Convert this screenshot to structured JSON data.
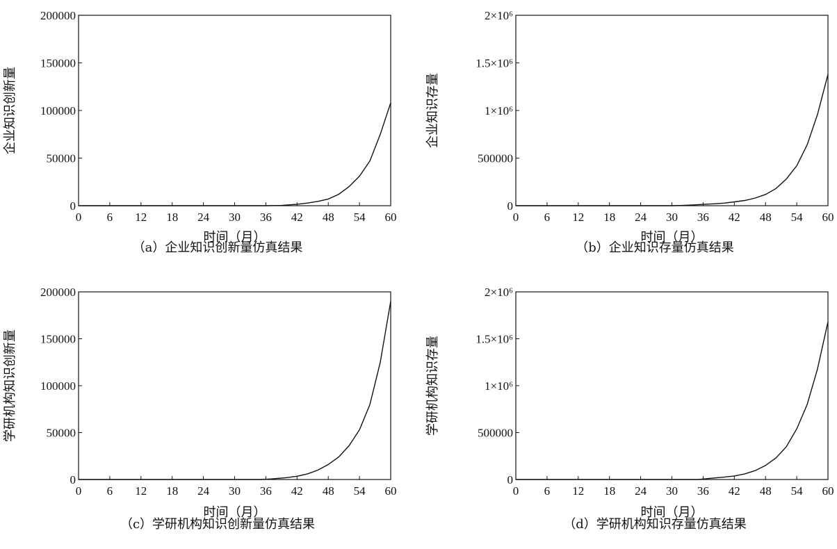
{
  "chart_data": [
    {
      "id": "a",
      "type": "line",
      "caption": "（a）企业知识创新量仿真结果",
      "xlabel": "时间（月）",
      "ylabel": "企业知识创新量",
      "xlim": [
        0,
        60
      ],
      "ylim": [
        0,
        200000
      ],
      "xticks": [
        0,
        6,
        12,
        18,
        24,
        30,
        36,
        42,
        48,
        54,
        60
      ],
      "xtick_labels": [
        "0",
        "6",
        "12",
        "18",
        "24",
        "30",
        "36",
        "42",
        "48",
        "54",
        "60"
      ],
      "yticks": [
        0,
        50000,
        100000,
        150000,
        200000
      ],
      "ytick_labels": [
        "0",
        "50000",
        "100000",
        "150000",
        "200000"
      ],
      "series": [
        {
          "x": [
            0,
            6,
            12,
            18,
            24,
            30,
            36,
            39,
            42,
            44,
            46,
            48,
            50,
            52,
            54,
            56,
            58,
            60
          ],
          "y": [
            0,
            0,
            0,
            0,
            0,
            0,
            0,
            300,
            1500,
            2800,
            4500,
            7000,
            12000,
            20000,
            31000,
            47000,
            75000,
            108000
          ]
        }
      ]
    },
    {
      "id": "b",
      "type": "line",
      "caption": "（b）企业知识存量仿真结果",
      "xlabel": "时间（月）",
      "ylabel": "企业知识存量",
      "xlim": [
        0,
        60
      ],
      "ylim": [
        0,
        2000000
      ],
      "xticks": [
        0,
        6,
        12,
        18,
        24,
        30,
        36,
        42,
        48,
        54,
        60
      ],
      "xtick_labels": [
        "0",
        "6",
        "12",
        "18",
        "24",
        "30",
        "36",
        "42",
        "48",
        "54",
        "60"
      ],
      "yticks": [
        0,
        500000,
        1000000,
        1500000,
        2000000
      ],
      "ytick_labels": [
        "0",
        "500000",
        "1×10⁶",
        "1.5×10⁶",
        "2×10⁶"
      ],
      "series": [
        {
          "x": [
            0,
            6,
            12,
            18,
            24,
            30,
            32,
            34,
            36,
            38,
            40,
            42,
            44,
            46,
            48,
            50,
            52,
            54,
            56,
            58,
            60
          ],
          "y": [
            0,
            0,
            0,
            0,
            0,
            0,
            3000,
            8000,
            14000,
            20000,
            27000,
            40000,
            55000,
            80000,
            118000,
            180000,
            280000,
            420000,
            640000,
            960000,
            1380000
          ]
        }
      ]
    },
    {
      "id": "c",
      "type": "line",
      "caption": "（c）学研机构知识创新量仿真结果",
      "xlabel": "时间（月）",
      "ylabel": "学研机构知识创新量",
      "xlim": [
        0,
        60
      ],
      "ylim": [
        0,
        200000
      ],
      "xticks": [
        0,
        6,
        12,
        18,
        24,
        30,
        36,
        42,
        48,
        54,
        60
      ],
      "xtick_labels": [
        "0",
        "6",
        "12",
        "18",
        "24",
        "30",
        "36",
        "42",
        "48",
        "54",
        "60"
      ],
      "yticks": [
        0,
        50000,
        100000,
        150000,
        200000
      ],
      "ytick_labels": [
        "0",
        "50000",
        "100000",
        "150000",
        "200000"
      ],
      "series": [
        {
          "x": [
            0,
            6,
            12,
            18,
            24,
            30,
            35,
            37,
            40,
            42,
            44,
            46,
            48,
            50,
            52,
            54,
            56,
            58,
            60
          ],
          "y": [
            0,
            0,
            0,
            0,
            0,
            0,
            0,
            600,
            2000,
            3500,
            6000,
            10000,
            16000,
            24000,
            36000,
            53000,
            80000,
            125000,
            190000
          ]
        }
      ]
    },
    {
      "id": "d",
      "type": "line",
      "caption": "（d）学研机构知识存量仿真结果",
      "xlabel": "时间（月）",
      "ylabel": "学研机构知识存量",
      "xlim": [
        0,
        60
      ],
      "ylim": [
        0,
        2000000
      ],
      "xticks": [
        0,
        6,
        12,
        18,
        24,
        30,
        36,
        42,
        48,
        54,
        60
      ],
      "xtick_labels": [
        "0",
        "6",
        "12",
        "18",
        "24",
        "30",
        "36",
        "42",
        "48",
        "54",
        "60"
      ],
      "yticks": [
        0,
        500000,
        1000000,
        1500000,
        2000000
      ],
      "ytick_labels": [
        "0",
        "500000",
        "1×10⁶",
        "1.5×10⁶",
        "2×10⁶"
      ],
      "series": [
        {
          "x": [
            0,
            6,
            12,
            18,
            24,
            30,
            35,
            37,
            40,
            42,
            44,
            46,
            48,
            50,
            52,
            54,
            56,
            58,
            60
          ],
          "y": [
            0,
            0,
            0,
            0,
            0,
            0,
            0,
            10000,
            25000,
            38000,
            60000,
            95000,
            150000,
            230000,
            350000,
            540000,
            800000,
            1180000,
            1680000
          ]
        }
      ]
    }
  ]
}
